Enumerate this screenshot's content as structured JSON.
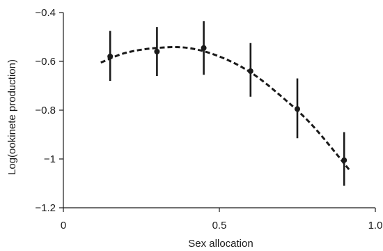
{
  "chart_data": {
    "type": "scatter",
    "title": "",
    "xlabel": "Sex allocation",
    "ylabel": "Log(ookinete production)",
    "xlim": [
      0,
      1.0
    ],
    "ylim": [
      -1.2,
      -0.4
    ],
    "x_ticks": [
      {
        "value": 0,
        "label": "0"
      },
      {
        "value": 0.5,
        "label": "0.5"
      },
      {
        "value": 1.0,
        "label": "1.0"
      }
    ],
    "y_ticks": [
      {
        "value": -0.4,
        "label": "−0.4"
      },
      {
        "value": -0.6,
        "label": "−0.6"
      },
      {
        "value": -0.8,
        "label": "−0.8"
      },
      {
        "value": -1.0,
        "label": "−1"
      },
      {
        "value": -1.2,
        "label": "−1.2"
      }
    ],
    "grid": false,
    "series": [
      {
        "type": "points_with_error_bars",
        "color": "#1a1a1a",
        "points": [
          {
            "x": 0.15,
            "y": -0.58,
            "ylow": -0.68,
            "yhigh": -0.475
          },
          {
            "x": 0.3,
            "y": -0.56,
            "ylow": -0.66,
            "yhigh": -0.46
          },
          {
            "x": 0.45,
            "y": -0.545,
            "ylow": -0.655,
            "yhigh": -0.435
          },
          {
            "x": 0.6,
            "y": -0.64,
            "ylow": -0.745,
            "yhigh": -0.525
          },
          {
            "x": 0.75,
            "y": -0.795,
            "ylow": -0.915,
            "yhigh": -0.67
          },
          {
            "x": 0.9,
            "y": -1.005,
            "ylow": -1.11,
            "yhigh": -0.89
          }
        ]
      },
      {
        "type": "fit_curve",
        "style": "dashed",
        "color": "#1a1a1a",
        "x": [
          0.12,
          0.2,
          0.3,
          0.4,
          0.5,
          0.6,
          0.7,
          0.8,
          0.92
        ],
        "y": [
          -0.605,
          -0.565,
          -0.545,
          -0.545,
          -0.58,
          -0.645,
          -0.745,
          -0.865,
          -1.05
        ]
      }
    ]
  }
}
